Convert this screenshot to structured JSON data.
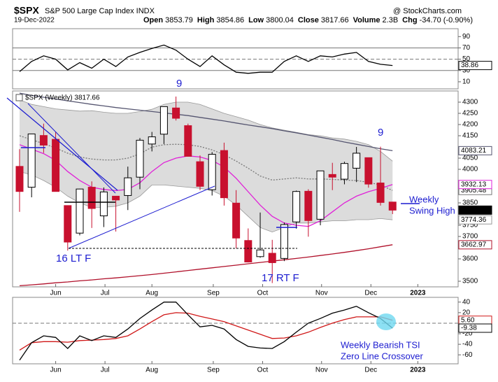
{
  "header": {
    "symbol": "$SPX",
    "name": "S&P 500 Large Cap Index INDX",
    "source": "@ StockCharts.com",
    "date": "19-Dec-2022",
    "stats": [
      {
        "label": "Open",
        "value": "3853.79"
      },
      {
        "label": "High",
        "value": "3854.86"
      },
      {
        "label": "Low",
        "value": "3800.04"
      },
      {
        "label": "Close",
        "value": "3817.66"
      },
      {
        "label": "Volume",
        "value": "2.3B"
      },
      {
        "label": "Chg",
        "value": "-34.70 (-0.90%)"
      }
    ]
  },
  "chart_data": [
    {
      "type": "line",
      "xlim": [
        -0.58,
        36.45
      ],
      "ylim": [
        -2.5,
        104
      ],
      "yticks": [
        90,
        70,
        50,
        30,
        10
      ],
      "ref_lines": [
        {
          "value": 70,
          "dashed": false
        },
        {
          "value": 50,
          "dashed": true
        },
        {
          "value": 30,
          "dashed": false
        }
      ],
      "series": [
        {
          "color": "#000000",
          "tag": true,
          "values": [
            28,
            46,
            56,
            50,
            31,
            44,
            34,
            50,
            37,
            54,
            62,
            69,
            75,
            66,
            50,
            37,
            56,
            40,
            27,
            25,
            27,
            27,
            46,
            56,
            46,
            56,
            54,
            59,
            62,
            46,
            41,
            38.86
          ]
        }
      ]
    },
    {
      "type": "candlestick",
      "label": "$SPX (Weekly) 3817.66",
      "xlim": [
        -0.58,
        36.45
      ],
      "ylim": [
        3475,
        4350
      ],
      "yticks": [
        4300,
        4250,
        4200,
        4150,
        4050,
        4000,
        3850,
        3750,
        3700,
        3600,
        3500
      ],
      "xticks": [
        {
          "value": 3.0,
          "label": "Jun"
        },
        {
          "value": 7.1,
          "label": "Jul"
        },
        {
          "value": 11.0,
          "label": "Aug"
        },
        {
          "value": 16.1,
          "label": "Sep"
        },
        {
          "value": 20.2,
          "label": "Oct"
        },
        {
          "value": 25.1,
          "label": "Nov"
        },
        {
          "value": 29.2,
          "label": "Dec"
        },
        {
          "value": 33.1,
          "label": "2023"
        }
      ],
      "up_color": "#000000",
      "down_color": "#c8102e",
      "close_tag": true,
      "open": [
        4013,
        3920,
        4151,
        4134,
        3838,
        3715,
        3920,
        3792,
        3880,
        3883,
        3965,
        4113,
        4157,
        4274,
        4195,
        4034,
        3909,
        4084,
        3849,
        3682,
        3610,
        3625,
        3602,
        3765,
        3902,
        3777,
        3977,
        3956,
        4005,
        4052,
        3939,
        3853.79
      ],
      "high": [
        4090,
        4158,
        4204,
        4168,
        3838,
        3913,
        3946,
        3919,
        3880,
        4012,
        4140,
        4167,
        4280,
        4325,
        4204,
        4062,
        4077,
        4119,
        3907,
        3736,
        3807,
        3685,
        3762,
        3905,
        3911,
        3993,
        4029,
        4034,
        4100,
        4052,
        4101,
        3854.86
      ],
      "low": [
        3810,
        3875,
        4073,
        3900,
        3637,
        3705,
        3738,
        3742,
        3722,
        3818,
        3911,
        4080,
        4113,
        4218,
        4057,
        3907,
        3883,
        3838,
        3647,
        3584,
        3605,
        3492,
        3590,
        3735,
        3699,
        3750,
        3907,
        3933,
        3943,
        3918,
        3838,
        3800.04
      ],
      "close": [
        3901,
        4158,
        4108,
        3901,
        3675,
        3912,
        3825,
        3899,
        3863,
        3962,
        4130,
        4145,
        4280,
        4228,
        4058,
        3924,
        4067,
        3873,
        3693,
        3586,
        3640,
        3583,
        3753,
        3901,
        3771,
        3993,
        3965,
        4026,
        4072,
        3934,
        3852,
        3817.66
      ],
      "band": {
        "color": "#dcdcdc",
        "upper": [
          4310,
          4290,
          4280,
          4270,
          4265,
          4260,
          4262,
          4255,
          4250,
          4250,
          4258,
          4268,
          4290,
          4300,
          4300,
          4290,
          4270,
          4250,
          4235,
          4220,
          4200,
          4185,
          4175,
          4165,
          4155,
          4150,
          4140,
          4135,
          4125,
          4110,
          4080,
          4036.6
        ],
        "lower": [
          3990,
          3975,
          3950,
          3920,
          3880,
          3850,
          3830,
          3830,
          3835,
          3850,
          3880,
          3930,
          3930,
          3925,
          3920,
          3915,
          3905,
          3880,
          3840,
          3790,
          3740,
          3720,
          3740,
          3760,
          3760,
          3765,
          3770,
          3770,
          3775,
          3775,
          3780,
          3774.36
        ],
        "tag_lower": true
      },
      "series": [
        {
          "color": "#555570",
          "tag": true,
          "values": [
            4340,
            4330,
            4322,
            4314,
            4306,
            4298,
            4290,
            4283,
            4276,
            4270,
            4264,
            4258,
            4252,
            4246,
            4240,
            4232,
            4224,
            4216,
            4207,
            4198,
            4190,
            4182,
            4172,
            4163,
            4153,
            4143,
            4133,
            4122,
            4112,
            4102,
            4092,
            4083.21
          ]
        },
        {
          "color": "#777777",
          "dashed": true,
          "tag": true,
          "values": [
            4150,
            4132,
            4115,
            4095,
            4072,
            4055,
            4046,
            4042,
            4042,
            4050,
            4069,
            4099,
            4110,
            4112,
            4110,
            4102,
            4087,
            4065,
            4037,
            4005,
            3970,
            3952,
            3957,
            3962,
            3957,
            3957,
            3955,
            3952,
            3950,
            3942,
            3930,
            3905.48
          ]
        },
        {
          "color": "#e020d8",
          "tag": true,
          "values": [
            4110,
            4090,
            4070,
            4040,
            3990,
            3950,
            3920,
            3910,
            3905,
            3910,
            3940,
            3990,
            4030,
            4050,
            4060,
            4055,
            4040,
            4010,
            3960,
            3900,
            3840,
            3790,
            3760,
            3750,
            3745,
            3770,
            3810,
            3850,
            3880,
            3900,
            3915,
            3932.13
          ]
        },
        {
          "color": "#b0102a",
          "tag": true,
          "values": [
            3480,
            3484,
            3488,
            3493,
            3497,
            3502,
            3506,
            3511,
            3515,
            3520,
            3525,
            3530,
            3536,
            3542,
            3548,
            3554,
            3560,
            3566,
            3572,
            3578,
            3584,
            3590,
            3596,
            3602,
            3608,
            3615,
            3622,
            3629,
            3637,
            3645,
            3654,
            3662.97
          ]
        }
      ],
      "annotations": [
        "9",
        "9",
        "16 LT F",
        "17 RT F",
        "Weekly",
        "Swing High"
      ]
    },
    {
      "type": "line",
      "xlim": [
        -0.58,
        36.45
      ],
      "ylim": [
        -77,
        49
      ],
      "yticks": [
        40,
        20,
        -20,
        -40,
        -60
      ],
      "xticks": [
        {
          "value": 3.0,
          "label": "Jun"
        },
        {
          "value": 7.1,
          "label": "Jul"
        },
        {
          "value": 11.0,
          "label": "Aug"
        },
        {
          "value": 16.1,
          "label": "Sep"
        },
        {
          "value": 20.2,
          "label": "Oct"
        },
        {
          "value": 25.1,
          "label": "Nov"
        },
        {
          "value": 29.2,
          "label": "Dec"
        },
        {
          "value": 33.1,
          "label": "2023"
        }
      ],
      "ref_lines": [
        {
          "value": 0,
          "dashed": true
        }
      ],
      "series": [
        {
          "color": "#d01818",
          "tag": true,
          "values": [
            -51,
            -37,
            -35,
            -35,
            -36,
            -33,
            -32,
            -31,
            -29,
            -24,
            -11,
            3,
            16,
            20,
            19,
            13,
            8,
            3,
            -5,
            -13,
            -21,
            -29,
            -28,
            -24,
            -17,
            -8,
            0,
            7,
            12,
            12,
            12,
            5.6
          ],
          "value_labels": [
            null,
            null,
            null,
            null,
            null,
            null,
            null,
            null,
            null,
            null,
            null,
            null,
            null,
            null,
            null,
            null,
            null,
            null,
            null,
            null,
            null,
            null,
            null,
            null,
            null,
            null,
            null,
            null,
            null,
            null,
            null,
            "5.60"
          ]
        },
        {
          "color": "#000000",
          "tag": true,
          "values": [
            -70,
            -37,
            -24,
            -27,
            -48,
            -24,
            -33,
            -24,
            -27,
            -11,
            9,
            25,
            40,
            40,
            16,
            -7,
            -4,
            -11,
            -31,
            -44,
            -47,
            -48,
            -35,
            -17,
            0,
            9,
            19,
            25,
            32,
            20,
            9,
            -9.38
          ]
        }
      ],
      "annotations": [
        "Weekly Bearish TSI",
        "Zero Line Crossover"
      ]
    }
  ]
}
